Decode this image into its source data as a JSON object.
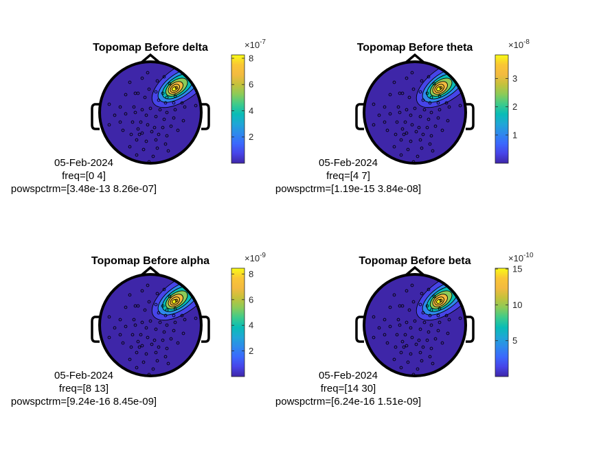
{
  "figure": {
    "background": "#ffffff"
  },
  "colormap": [
    "#3e26a8",
    "#4744e8",
    "#3b68fd",
    "#2e89ec",
    "#1fa7d6",
    "#09bcb6",
    "#3ecb8b",
    "#8bcb58",
    "#c5c13b",
    "#f3ba40",
    "#fac635",
    "#f9fb15"
  ],
  "chart_data": [
    {
      "type": "heatmap",
      "title": "Topomap Before delta",
      "date": "05-Feb-2024",
      "freq_text": "freq=[0 4]",
      "power_text": "powspctrm=[3.48e-13 8.26e-07]",
      "colorbar": {
        "multiplier": "×10",
        "exponent": "-7",
        "ticks": [
          2,
          4,
          6,
          8
        ],
        "range": [
          3.5e-06,
          8.26
        ]
      }
    },
    {
      "type": "heatmap",
      "title": "Topomap Before theta",
      "date": "05-Feb-2024",
      "freq_text": "freq=[4 7]",
      "power_text": "powspctrm=[1.19e-15 3.84e-08]",
      "colorbar": {
        "multiplier": "×10",
        "exponent": "-8",
        "ticks": [
          1,
          2,
          3
        ],
        "range": [
          0,
          3.84
        ]
      }
    },
    {
      "type": "heatmap",
      "title": "Topomap Before alpha",
      "date": "05-Feb-2024",
      "freq_text": "freq=[8 13]",
      "power_text": "powspctrm=[9.24e-16 8.45e-09]",
      "colorbar": {
        "multiplier": "×10",
        "exponent": "-9",
        "ticks": [
          2,
          4,
          6,
          8
        ],
        "range": [
          0,
          8.45
        ]
      }
    },
    {
      "type": "heatmap",
      "title": "Topomap Before beta",
      "date": "05-Feb-2024",
      "freq_text": "freq=[14 30]",
      "power_text": "powspctrm=[6.24e-16 1.51e-09]",
      "colorbar": {
        "multiplier": "×10",
        "exponent": "-10",
        "ticks": [
          5,
          10,
          15
        ],
        "range": [
          0,
          15.1
        ]
      }
    }
  ]
}
